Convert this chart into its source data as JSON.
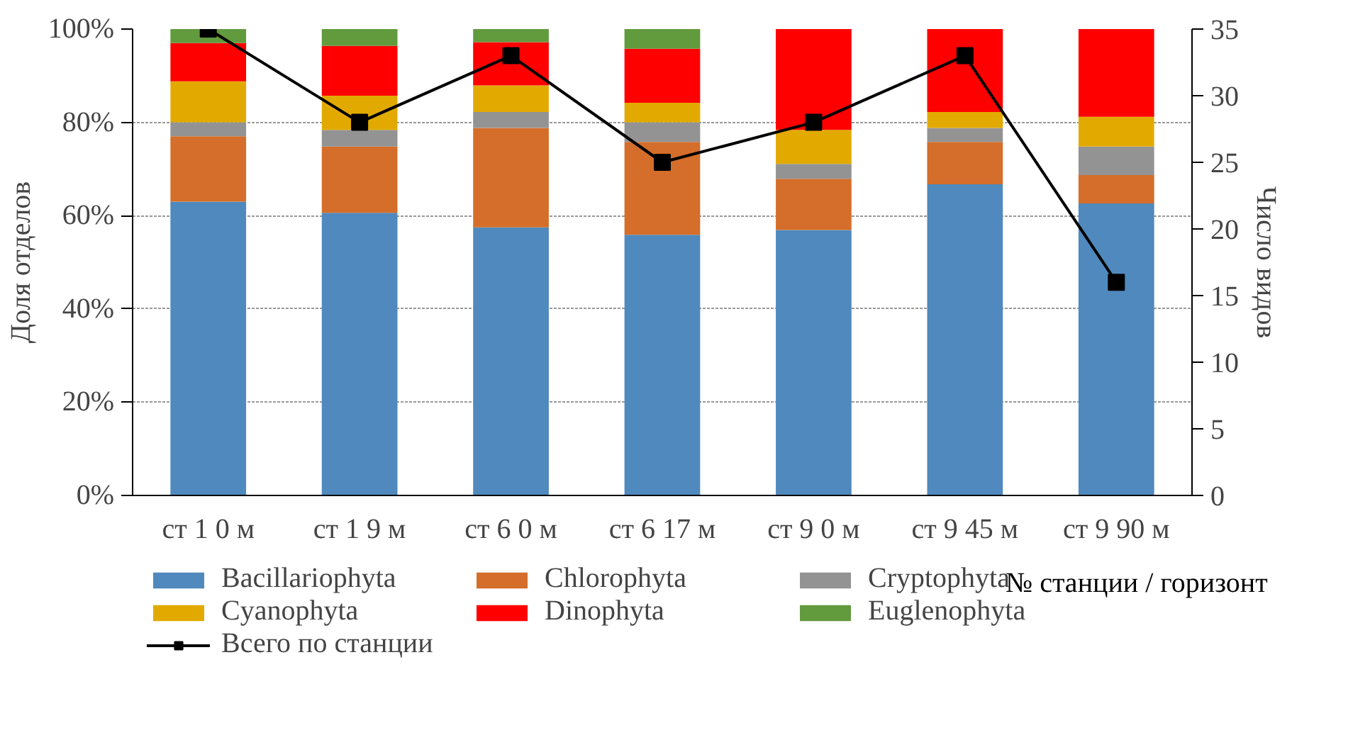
{
  "chart_data": {
    "type": "bar",
    "stacked": true,
    "ylabel": "Доля отделов",
    "y2label": "Число видов",
    "xlabel": "№ станции / горизонт",
    "categories": [
      "ст 1 0 м",
      "ст 1 9 м",
      "ст 6 0 м",
      "ст 6 17 м",
      "ст 9 0 м",
      "ст 9 45 м",
      "ст 9 90 м"
    ],
    "series": [
      {
        "name": "Bacillariophyta",
        "color": "#4f89bd",
        "values": [
          63.0,
          60.6,
          57.5,
          55.9,
          56.9,
          66.7,
          62.6
        ]
      },
      {
        "name": "Chlorophyta",
        "color": "#d46e2a",
        "values": [
          14.0,
          14.2,
          21.3,
          19.9,
          11.0,
          9.1,
          6.1
        ]
      },
      {
        "name": "Cryptophyta",
        "color": "#939393",
        "values": [
          3.0,
          3.6,
          3.4,
          4.2,
          3.2,
          3.0,
          6.1
        ]
      },
      {
        "name": "Cyanophyta",
        "color": "#e2aa00",
        "values": [
          8.8,
          7.3,
          5.7,
          4.2,
          7.3,
          3.4,
          6.4
        ]
      },
      {
        "name": "Dinophyta",
        "color": "#ff0000",
        "values": [
          8.2,
          10.7,
          9.3,
          11.6,
          21.6,
          17.8,
          18.8
        ]
      },
      {
        "name": "Euglenophyta",
        "color": "#629a3e",
        "values": [
          3.0,
          3.6,
          2.8,
          4.2,
          0,
          0,
          0
        ]
      },
      {
        "name": "Всего по станции",
        "type": "line",
        "axis": "y2",
        "color": "#000000",
        "marker": "square",
        "line_style": "solid",
        "values": [
          35,
          28,
          33,
          25,
          28,
          33,
          16
        ]
      }
    ],
    "ylim": [
      0,
      100
    ],
    "yticks": [
      {
        "value": 0,
        "label": "0%"
      },
      {
        "value": 20,
        "label": "20%"
      },
      {
        "value": 40,
        "label": "40%"
      },
      {
        "value": 60,
        "label": "60%"
      },
      {
        "value": 80,
        "label": "80%"
      },
      {
        "value": 100,
        "label": "100%"
      }
    ],
    "y2lim": [
      0,
      35
    ],
    "y2ticks": [
      0,
      5,
      10,
      15,
      20,
      25,
      30,
      35
    ],
    "grid": "y",
    "legend": "bottom"
  }
}
